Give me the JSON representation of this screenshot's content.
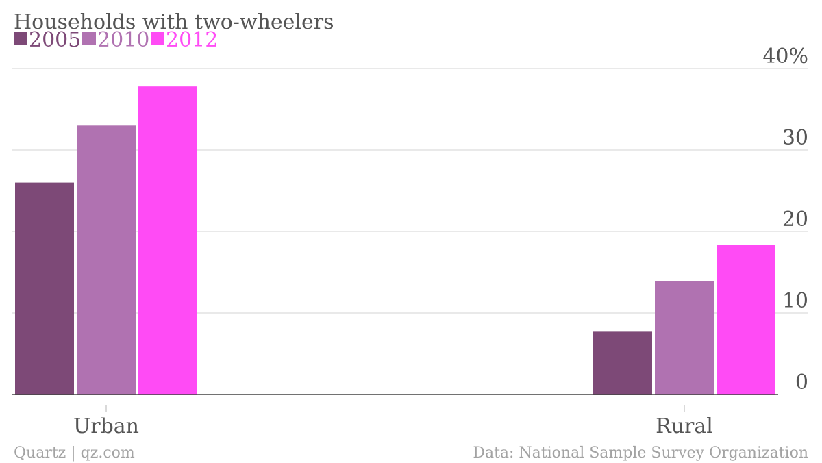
{
  "chart_data": {
    "type": "bar",
    "title": "Households with two-wheelers",
    "categories": [
      "Urban",
      "Rural"
    ],
    "series": [
      {
        "name": "2005",
        "color": "#7d4977",
        "values": [
          26,
          7.7
        ]
      },
      {
        "name": "2010",
        "color": "#b072b1",
        "values": [
          33,
          13.9
        ]
      },
      {
        "name": "2012",
        "color": "#ff4bf5",
        "values": [
          37.8,
          18.4
        ]
      }
    ],
    "ylim": [
      0,
      40
    ],
    "yticks": [
      {
        "value": 0,
        "label": "0"
      },
      {
        "value": 10,
        "label": "10"
      },
      {
        "value": 20,
        "label": "20"
      },
      {
        "value": 30,
        "label": "30"
      },
      {
        "value": 40,
        "label": "40%"
      }
    ],
    "grid": true,
    "legend_position": "top-left",
    "y_axis_side": "right"
  },
  "footer": {
    "left": "Quartz | qz.com",
    "right": "Data: National Sample Survey Organization"
  }
}
